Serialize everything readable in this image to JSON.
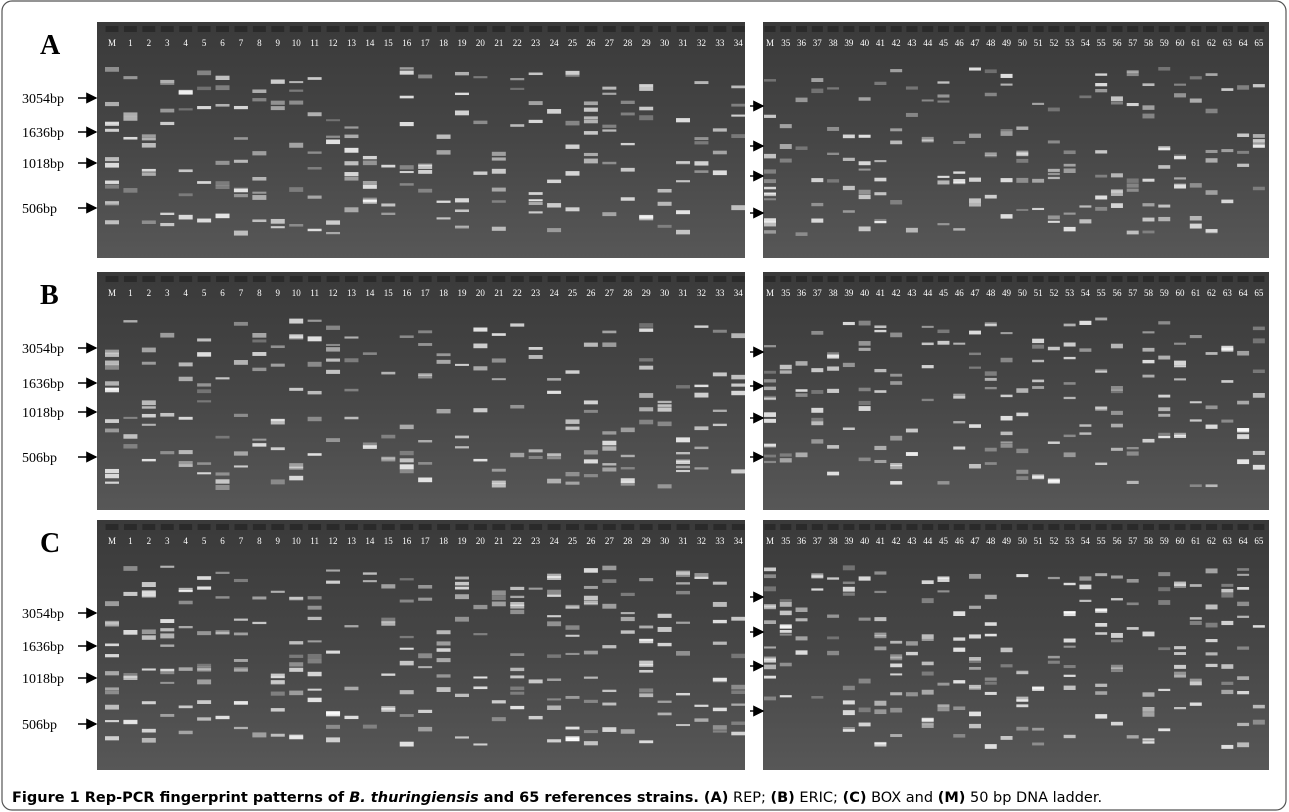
{
  "lanes": {
    "left": [
      "M",
      "1",
      "2",
      "3",
      "4",
      "5",
      "6",
      "7",
      "8",
      "9",
      "10",
      "11",
      "12",
      "13",
      "14",
      "15",
      "16",
      "17",
      "18",
      "19",
      "20",
      "21",
      "22",
      "23",
      "24",
      "25",
      "26",
      "27",
      "28",
      "29",
      "30",
      "31",
      "32",
      "33",
      "34"
    ],
    "right": [
      "M",
      "35",
      "36",
      "37",
      "38",
      "39",
      "40",
      "41",
      "42",
      "43",
      "44",
      "45",
      "46",
      "47",
      "48",
      "49",
      "50",
      "51",
      "52",
      "53",
      "54",
      "55",
      "56",
      "57",
      "58",
      "59",
      "60",
      "61",
      "62",
      "63",
      "64",
      "65"
    ]
  },
  "marker_labels": [
    "3054bp",
    "1636bp",
    "1018bp",
    "506bp"
  ],
  "panels": [
    {
      "letter": "A"
    },
    {
      "letter": "B"
    },
    {
      "letter": "C"
    }
  ],
  "caption": [
    {
      "text": "Figure 1 Rep-PCR fingerprint patterns of ",
      "style": "bold"
    },
    {
      "text": "B. thuringiensis",
      "style": "bold-italic"
    },
    {
      "text": " and 65 references strains. ",
      "style": "bold"
    },
    {
      "text": "(A)",
      "style": "bold"
    },
    {
      "text": " REP; ",
      "style": "normal"
    },
    {
      "text": "(B)",
      "style": "bold"
    },
    {
      "text": " ERIC; ",
      "style": "normal"
    },
    {
      "text": "(C)",
      "style": "bold"
    },
    {
      "text": " BOX and ",
      "style": "normal"
    },
    {
      "text": "(M)",
      "style": "bold"
    },
    {
      "text": " 50 bp DNA ladder.",
      "style": "normal"
    }
  ]
}
